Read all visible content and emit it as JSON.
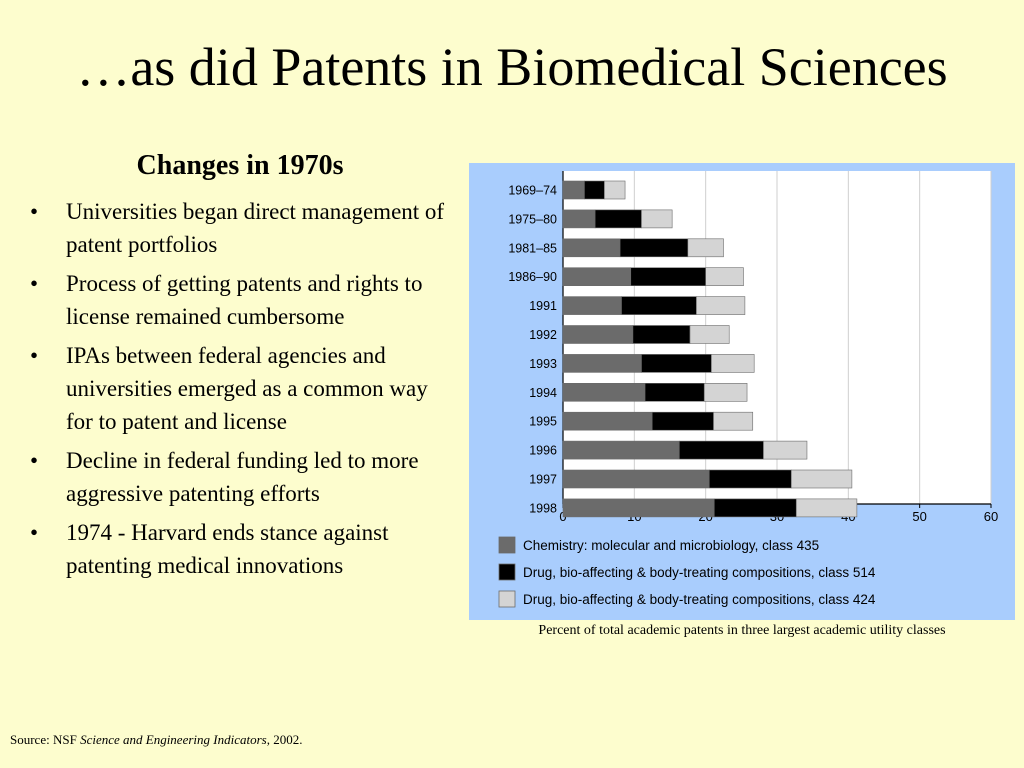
{
  "title": "…as did Patents in Biomedical Sciences",
  "subheading": "Changes in 1970s",
  "bullets": [
    "Universities began direct management of patent portfolios",
    "Process of getting patents and rights to license remained cumbersome",
    "IPAs between federal agencies and universities emerged as a common way for to patent and license",
    "Decline in federal funding led to more aggressive patenting efforts",
    "1974 - Harvard ends stance against patenting medical innovations"
  ],
  "bullet_glyph": "•",
  "caption": "Percent of total academic patents in three largest academic utility classes",
  "source": {
    "prefix": "Source: NSF ",
    "title": "Science and Engineering Indicators",
    "suffix": ", 2002."
  },
  "chart_data": {
    "type": "bar",
    "orientation": "horizontal",
    "stacked": true,
    "categories": [
      "1969–74",
      "1975–80",
      "1981–85",
      "1986–90",
      "1991",
      "1992",
      "1993",
      "1994",
      "1995",
      "1996",
      "1997",
      "1998"
    ],
    "series": [
      {
        "name": "Chemistry: molecular and microbiology, class 435",
        "color": "#6b6b6b",
        "values": [
          3.0,
          4.5,
          8.0,
          9.5,
          8.2,
          9.8,
          11.0,
          11.5,
          12.5,
          16.3,
          20.5,
          21.2
        ]
      },
      {
        "name": "Drug, bio-affecting & body-treating compositions, class 514",
        "color": "#000000",
        "values": [
          2.8,
          6.5,
          9.5,
          10.5,
          10.5,
          8.0,
          9.8,
          8.3,
          8.6,
          11.8,
          11.5,
          11.5
        ]
      },
      {
        "name": "Drug, bio-affecting & body-treating compositions, class 424",
        "color": "#d4d4d4",
        "values": [
          2.9,
          4.3,
          5.0,
          5.3,
          6.8,
          5.5,
          6.0,
          6.0,
          5.5,
          6.1,
          8.5,
          8.5
        ]
      }
    ],
    "xticks": [
      0,
      10,
      20,
      30,
      40,
      50,
      60
    ],
    "xlim": [
      0,
      60
    ],
    "grid": true,
    "legend_position": "bottom"
  }
}
